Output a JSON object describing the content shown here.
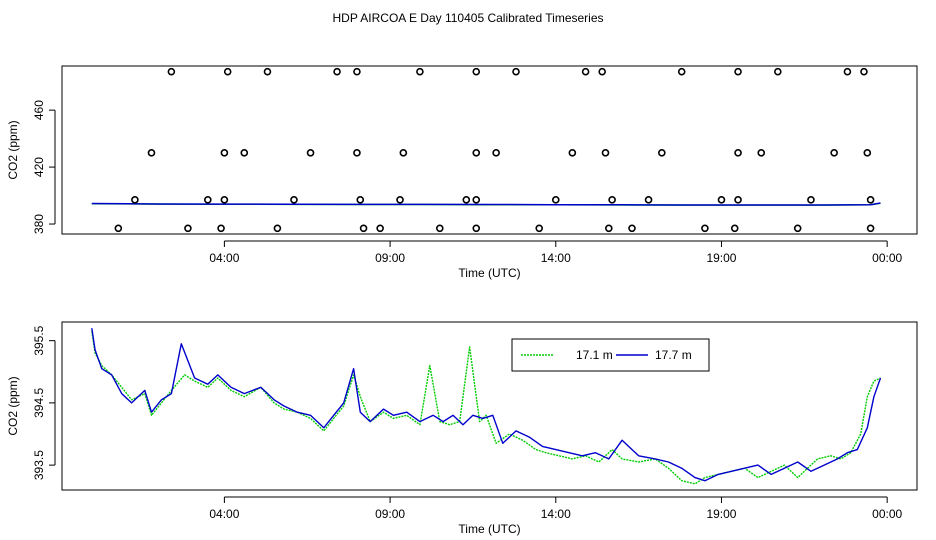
{
  "figure": {
    "title": "HDP AIRCOA E  Day 110405  Calibrated Timeseries"
  },
  "chart_data": [
    {
      "type": "scatter",
      "xlabel": "Time (UTC)",
      "ylabel": "CO2 (ppm)",
      "x_unit": "hours UTC",
      "xlim": [
        -0.9,
        24.9
      ],
      "ylim": [
        373,
        491
      ],
      "grid": false,
      "legend": "none",
      "x_ticks": [
        {
          "value": 4,
          "label": "04:00"
        },
        {
          "value": 9,
          "label": "09:00"
        },
        {
          "value": 14,
          "label": "14:00"
        },
        {
          "value": 19,
          "label": "19:00"
        },
        {
          "value": 24,
          "label": "00:00"
        }
      ],
      "y_ticks": [
        {
          "value": 380,
          "label": "380"
        },
        {
          "value": 420,
          "label": "420"
        },
        {
          "value": 460,
          "label": "460"
        }
      ],
      "points_color": "#000000",
      "points": [
        {
          "x": 2.4,
          "y": 487
        },
        {
          "x": 4.1,
          "y": 487
        },
        {
          "x": 5.3,
          "y": 487
        },
        {
          "x": 7.4,
          "y": 487
        },
        {
          "x": 8.0,
          "y": 487
        },
        {
          "x": 9.9,
          "y": 487
        },
        {
          "x": 11.6,
          "y": 487
        },
        {
          "x": 12.8,
          "y": 487
        },
        {
          "x": 14.9,
          "y": 487
        },
        {
          "x": 15.4,
          "y": 487
        },
        {
          "x": 17.8,
          "y": 487
        },
        {
          "x": 19.5,
          "y": 487
        },
        {
          "x": 20.7,
          "y": 487
        },
        {
          "x": 22.8,
          "y": 487
        },
        {
          "x": 23.3,
          "y": 487
        },
        {
          "x": 1.8,
          "y": 430
        },
        {
          "x": 4.0,
          "y": 430
        },
        {
          "x": 4.6,
          "y": 430
        },
        {
          "x": 6.6,
          "y": 430
        },
        {
          "x": 8.0,
          "y": 430
        },
        {
          "x": 9.4,
          "y": 430
        },
        {
          "x": 11.6,
          "y": 430
        },
        {
          "x": 12.2,
          "y": 430
        },
        {
          "x": 14.5,
          "y": 430
        },
        {
          "x": 15.5,
          "y": 430
        },
        {
          "x": 17.2,
          "y": 430
        },
        {
          "x": 19.5,
          "y": 430
        },
        {
          "x": 20.2,
          "y": 430
        },
        {
          "x": 22.4,
          "y": 430
        },
        {
          "x": 23.4,
          "y": 430
        },
        {
          "x": 1.3,
          "y": 397
        },
        {
          "x": 3.5,
          "y": 397
        },
        {
          "x": 4.0,
          "y": 397
        },
        {
          "x": 6.1,
          "y": 397
        },
        {
          "x": 8.1,
          "y": 397
        },
        {
          "x": 9.3,
          "y": 397
        },
        {
          "x": 11.3,
          "y": 397
        },
        {
          "x": 11.6,
          "y": 397
        },
        {
          "x": 14.0,
          "y": 397
        },
        {
          "x": 15.7,
          "y": 397
        },
        {
          "x": 16.8,
          "y": 397
        },
        {
          "x": 19.0,
          "y": 397
        },
        {
          "x": 19.5,
          "y": 397
        },
        {
          "x": 21.7,
          "y": 397
        },
        {
          "x": 23.5,
          "y": 397
        },
        {
          "x": 0.8,
          "y": 377
        },
        {
          "x": 2.9,
          "y": 377
        },
        {
          "x": 3.9,
          "y": 377
        },
        {
          "x": 5.6,
          "y": 377
        },
        {
          "x": 8.2,
          "y": 377
        },
        {
          "x": 8.7,
          "y": 377
        },
        {
          "x": 10.5,
          "y": 377
        },
        {
          "x": 11.6,
          "y": 377
        },
        {
          "x": 13.5,
          "y": 377
        },
        {
          "x": 15.6,
          "y": 377
        },
        {
          "x": 16.3,
          "y": 377
        },
        {
          "x": 18.5,
          "y": 377
        },
        {
          "x": 19.4,
          "y": 377
        },
        {
          "x": 21.3,
          "y": 377
        },
        {
          "x": 23.5,
          "y": 377
        }
      ],
      "lines": [
        {
          "color": "#00cc00",
          "x": [
            0,
            2,
            4,
            6,
            8,
            10,
            12,
            14,
            16,
            18,
            20,
            22,
            23.5,
            23.8
          ],
          "y": [
            394.3,
            394.0,
            393.9,
            393.8,
            393.7,
            393.7,
            393.6,
            393.5,
            393.4,
            393.3,
            393.3,
            393.3,
            393.5,
            394.6
          ]
        },
        {
          "color": "#0000cc",
          "x": [
            0,
            2,
            4,
            6,
            8,
            10,
            12,
            14,
            16,
            18,
            20,
            22,
            23.5,
            23.8
          ],
          "y": [
            394.4,
            394.1,
            394.0,
            393.9,
            393.8,
            393.8,
            393.7,
            393.6,
            393.5,
            393.4,
            393.4,
            393.4,
            393.6,
            394.8
          ]
        }
      ]
    },
    {
      "type": "line",
      "xlabel": "Time (UTC)",
      "ylabel": "CO2 (ppm)",
      "x_unit": "hours UTC",
      "xlim": [
        -0.9,
        24.9
      ],
      "ylim": [
        393.1,
        395.8
      ],
      "grid": false,
      "legend": "top-center",
      "x_ticks": [
        {
          "value": 4,
          "label": "04:00"
        },
        {
          "value": 9,
          "label": "09:00"
        },
        {
          "value": 14,
          "label": "14:00"
        },
        {
          "value": 19,
          "label": "19:00"
        },
        {
          "value": 24,
          "label": "00:00"
        }
      ],
      "y_ticks": [
        {
          "value": 393.5,
          "label": "393.5"
        },
        {
          "value": 394.5,
          "label": "394.5"
        },
        {
          "value": 395.5,
          "label": "395.5"
        }
      ],
      "series": [
        {
          "name": "17.1 m",
          "color": "#00cc00",
          "dash": "2,1",
          "x": [
            0.0,
            0.1,
            0.3,
            0.6,
            0.9,
            1.2,
            1.6,
            1.8,
            2.1,
            2.4,
            2.8,
            3.1,
            3.5,
            3.8,
            4.2,
            4.6,
            5.1,
            5.5,
            5.8,
            6.2,
            6.6,
            7.0,
            7.3,
            7.6,
            7.9,
            8.1,
            8.4,
            8.8,
            9.1,
            9.5,
            9.9,
            10.2,
            10.5,
            10.8,
            11.1,
            11.4,
            11.7,
            11.9,
            12.2,
            12.6,
            13.0,
            13.4,
            13.7,
            14.1,
            14.5,
            14.9,
            15.3,
            15.7,
            16.0,
            16.5,
            17.0,
            17.4,
            17.8,
            18.2,
            18.5,
            18.9,
            19.3,
            19.7,
            20.1,
            20.5,
            20.9,
            21.3,
            21.6,
            21.9,
            22.3,
            22.6,
            22.9,
            23.2,
            23.4,
            23.6,
            23.8
          ],
          "y": [
            395.65,
            395.3,
            395.1,
            394.95,
            394.75,
            394.55,
            394.65,
            394.3,
            394.5,
            394.7,
            394.95,
            394.85,
            394.75,
            394.9,
            394.7,
            394.6,
            394.75,
            394.5,
            394.4,
            394.35,
            394.25,
            394.05,
            394.25,
            394.45,
            394.95,
            394.6,
            394.2,
            394.35,
            394.25,
            394.3,
            394.15,
            395.1,
            394.2,
            394.15,
            394.2,
            395.4,
            394.2,
            394.3,
            393.85,
            394.0,
            393.9,
            393.75,
            393.7,
            393.65,
            393.6,
            393.65,
            393.55,
            393.75,
            393.6,
            393.55,
            393.6,
            393.45,
            393.25,
            393.2,
            393.3,
            393.35,
            393.4,
            393.45,
            393.3,
            393.4,
            393.5,
            393.3,
            393.45,
            393.6,
            393.65,
            393.6,
            393.7,
            394.0,
            394.6,
            394.85,
            394.9
          ]
        },
        {
          "name": "17.7 m",
          "color": "#0000cc",
          "dash": "",
          "x": [
            0.0,
            0.1,
            0.3,
            0.6,
            0.9,
            1.2,
            1.6,
            1.8,
            2.1,
            2.4,
            2.7,
            3.1,
            3.5,
            3.8,
            4.2,
            4.6,
            5.1,
            5.5,
            5.8,
            6.2,
            6.6,
            7.0,
            7.3,
            7.6,
            7.9,
            8.1,
            8.4,
            8.8,
            9.1,
            9.5,
            9.9,
            10.3,
            10.6,
            10.9,
            11.2,
            11.5,
            11.8,
            12.1,
            12.4,
            12.8,
            13.2,
            13.6,
            14.0,
            14.4,
            14.8,
            15.2,
            15.6,
            16.0,
            16.5,
            17.0,
            17.4,
            17.8,
            18.2,
            18.5,
            18.9,
            19.3,
            19.7,
            20.1,
            20.5,
            20.9,
            21.3,
            21.7,
            22.1,
            22.5,
            22.8,
            23.1,
            23.4,
            23.6,
            23.8
          ],
          "y": [
            395.7,
            395.35,
            395.05,
            394.95,
            394.65,
            394.5,
            394.7,
            394.35,
            394.55,
            394.65,
            395.45,
            394.9,
            394.8,
            394.95,
            394.75,
            394.65,
            394.75,
            394.55,
            394.45,
            394.35,
            394.3,
            394.1,
            394.3,
            394.5,
            395.05,
            394.35,
            394.2,
            394.4,
            394.3,
            394.35,
            394.2,
            394.3,
            394.2,
            394.3,
            394.15,
            394.3,
            394.25,
            394.3,
            393.85,
            394.05,
            393.95,
            393.8,
            393.75,
            393.7,
            393.65,
            393.7,
            393.6,
            393.9,
            393.65,
            393.6,
            393.55,
            393.45,
            393.3,
            393.25,
            393.35,
            393.4,
            393.45,
            393.5,
            393.35,
            393.45,
            393.55,
            393.4,
            393.5,
            393.6,
            393.7,
            393.75,
            394.1,
            394.6,
            394.9
          ]
        }
      ]
    }
  ]
}
